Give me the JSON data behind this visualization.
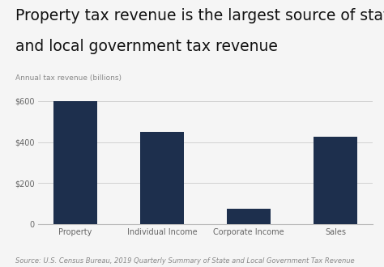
{
  "title_line1": "Property tax revenue is the largest source of state",
  "title_line2": "and local government tax revenue",
  "axis_label": "Annual tax revenue (billions)",
  "categories": [
    "Property",
    "Individual Income",
    "Corporate Income",
    "Sales"
  ],
  "values": [
    600,
    450,
    75,
    425
  ],
  "bar_color": "#1d2f4d",
  "yticks": [
    0,
    200,
    400,
    600
  ],
  "ylim": [
    0,
    650
  ],
  "source": "Source: U.S. Census Bureau, 2019 Quarterly Summary of State and Local Government Tax Revenue",
  "background_color": "#f5f5f5",
  "title_fontsize": 13.5,
  "axis_label_fontsize": 6.5,
  "tick_fontsize": 7,
  "source_fontsize": 6
}
